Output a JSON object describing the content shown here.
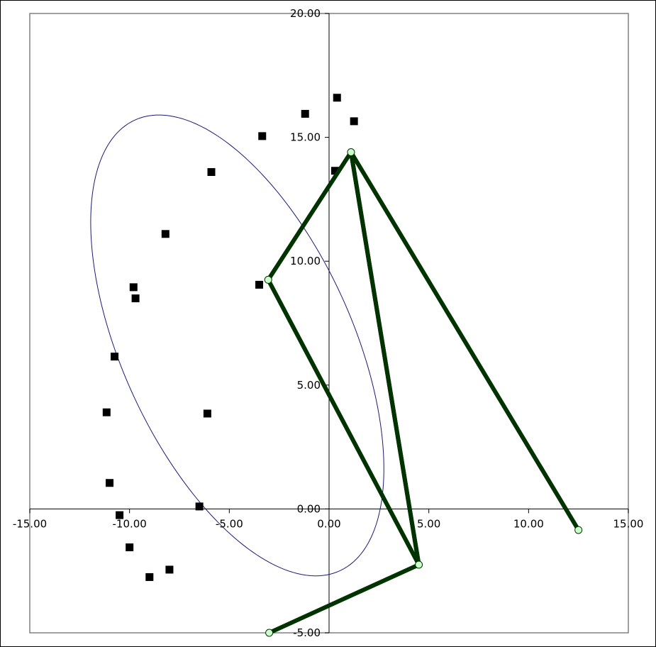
{
  "chart_data": {
    "type": "scatter",
    "title": "",
    "xlabel": "",
    "ylabel": "",
    "xlim": [
      -15,
      15
    ],
    "ylim": [
      -5,
      20
    ],
    "grid": false,
    "x_ticks": [
      {
        "value": -15,
        "label": "-15.00"
      },
      {
        "value": -10,
        "label": "-10.00"
      },
      {
        "value": -5,
        "label": "-5.00"
      },
      {
        "value": 0,
        "label": "0.00"
      },
      {
        "value": 5,
        "label": "5.00"
      },
      {
        "value": 10,
        "label": "10.00"
      },
      {
        "value": 15,
        "label": "15.00"
      }
    ],
    "y_ticks": [
      {
        "value": -5,
        "label": "-5.00"
      },
      {
        "value": 0,
        "label": "0.00"
      },
      {
        "value": 5,
        "label": "5.00"
      },
      {
        "value": 10,
        "label": "10.00"
      },
      {
        "value": 15,
        "label": "15.00"
      },
      {
        "value": 20,
        "label": "20.00"
      }
    ],
    "series": [
      {
        "kind": "points",
        "marker": "square",
        "color": "#000000",
        "points": [
          [
            0.4,
            16.6
          ],
          [
            -1.2,
            15.95
          ],
          [
            1.25,
            15.65
          ],
          [
            -3.35,
            15.05
          ],
          [
            0.3,
            13.65
          ],
          [
            -5.9,
            13.6
          ],
          [
            -8.2,
            11.1
          ],
          [
            -9.8,
            8.95
          ],
          [
            -3.5,
            9.05
          ],
          [
            -9.7,
            8.5
          ],
          [
            -10.75,
            6.15
          ],
          [
            -11.15,
            3.9
          ],
          [
            -6.1,
            3.85
          ],
          [
            -11.0,
            1.05
          ],
          [
            -6.5,
            0.1
          ],
          [
            -10.5,
            -0.25
          ],
          [
            -10.0,
            -1.55
          ],
          [
            -8.0,
            -2.45
          ],
          [
            -9.0,
            -2.75
          ]
        ]
      },
      {
        "kind": "curve",
        "color": "#1a1a7a",
        "ellipse": {
          "cx": -4.6,
          "cy": 6.6,
          "rx": 5.5,
          "ry": 10.5,
          "rotation_deg": 33
        }
      },
      {
        "kind": "linkage",
        "color": "#003300",
        "marker_fill": "#ccffcc",
        "joints": [
          [
            -3.0,
            -5.0
          ],
          [
            4.5,
            -2.25
          ],
          [
            1.1,
            14.4
          ],
          [
            -3.05,
            9.25
          ],
          [
            12.5,
            -0.85
          ]
        ],
        "links": [
          [
            0,
            1
          ],
          [
            1,
            2
          ],
          [
            2,
            1
          ],
          [
            1,
            3
          ],
          [
            3,
            2
          ],
          [
            2,
            4
          ]
        ]
      }
    ]
  }
}
